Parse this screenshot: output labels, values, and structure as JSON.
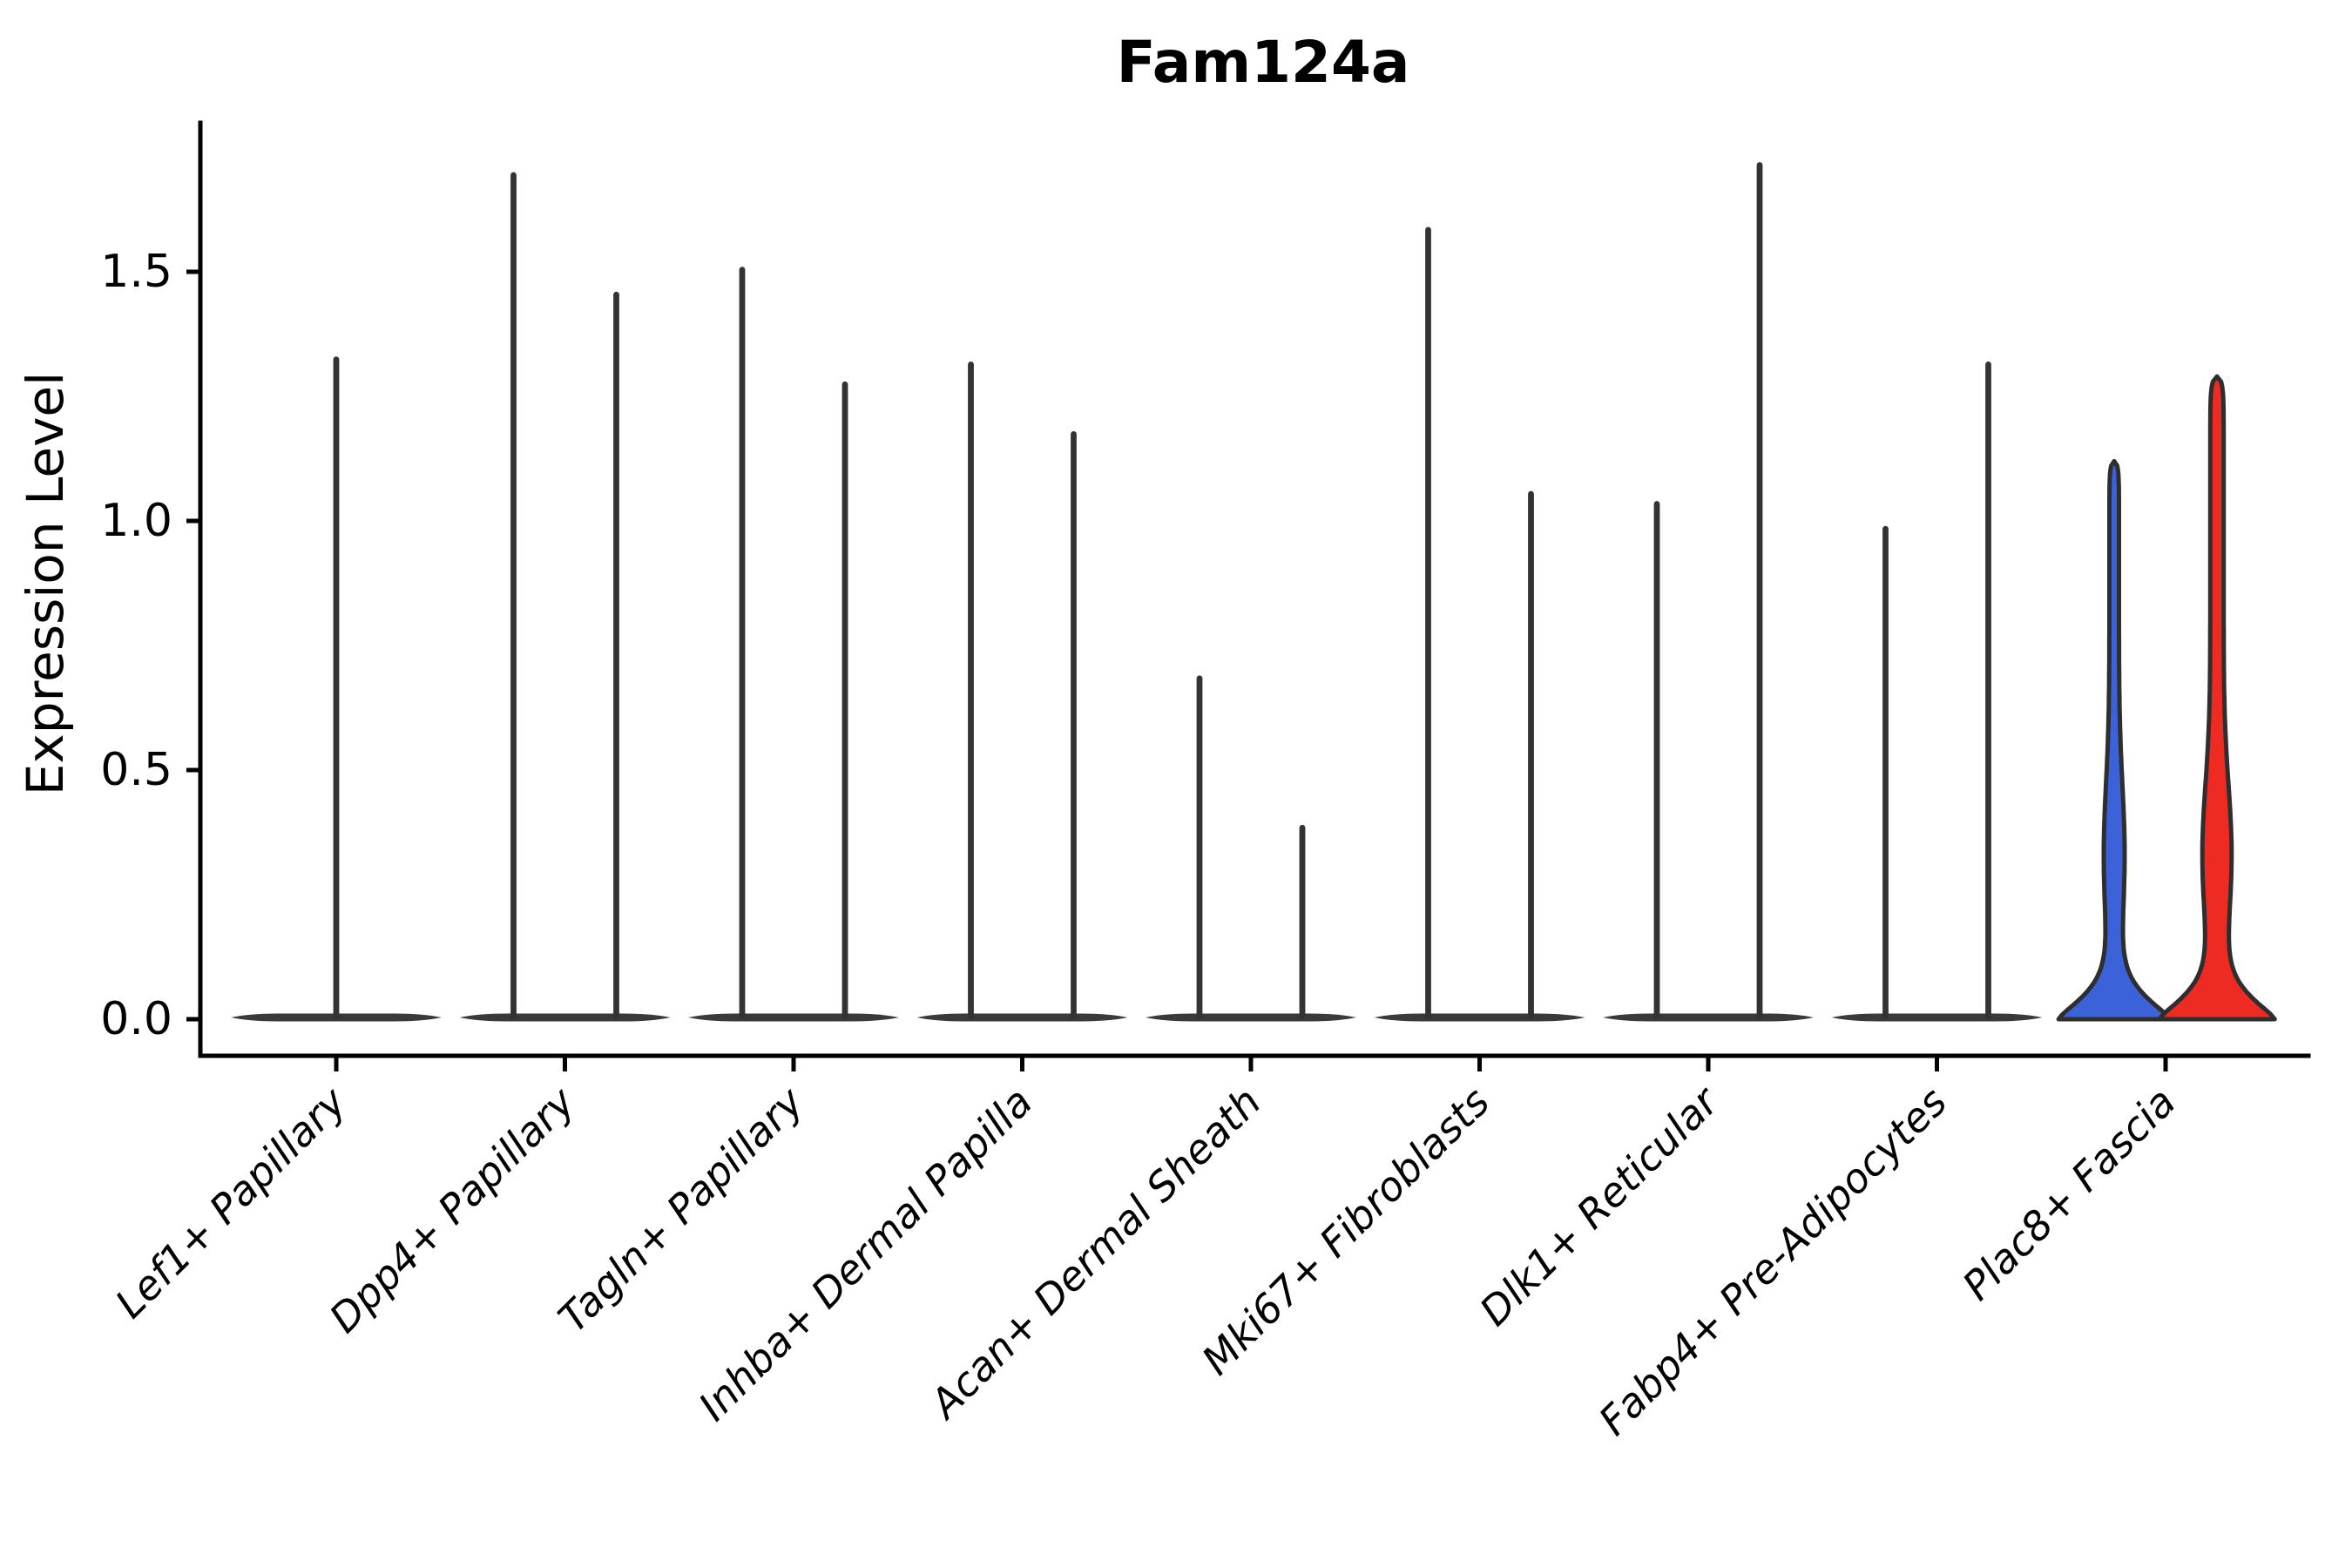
{
  "chart_data": {
    "type": "violin",
    "title": "Fam124a",
    "ylabel": "Expression Level",
    "xlabel": "",
    "grid": "off",
    "legend": "none",
    "ylim": [
      -0.07,
      1.8
    ],
    "yticks": [
      0.0,
      0.5,
      1.0,
      1.5
    ],
    "ytick_labels": [
      "0.0",
      "0.5",
      "1.0",
      "1.5"
    ],
    "categories": [
      "Lef1+ Papillary",
      "Dpp4+ Papillary",
      "Tagln+ Papillary",
      "Inhba+ Dermal Papilla",
      "Acan+ Dermal Sheath",
      "Mki67+ Fibroblasts",
      "Dlk1+ Reticular",
      "Fabp4+ Pre-Adipocytes",
      "Plac8+ Fascia"
    ],
    "groups": [
      {
        "category": "Lef1+ Papillary",
        "violins": [
          {
            "position": "center",
            "style": "spike",
            "max": 1.33
          }
        ]
      },
      {
        "category": "Dpp4+ Papillary",
        "violins": [
          {
            "position": "left",
            "style": "spike",
            "max": 1.7
          },
          {
            "position": "right",
            "style": "spike",
            "max": 1.46
          }
        ]
      },
      {
        "category": "Tagln+ Papillary",
        "violins": [
          {
            "position": "left",
            "style": "spike",
            "max": 1.51
          },
          {
            "position": "right",
            "style": "spike",
            "max": 1.28
          }
        ]
      },
      {
        "category": "Inhba+ Dermal Papilla",
        "violins": [
          {
            "position": "left",
            "style": "spike",
            "max": 1.32
          },
          {
            "position": "right",
            "style": "spike",
            "max": 1.18
          }
        ]
      },
      {
        "category": "Acan+ Dermal Sheath",
        "violins": [
          {
            "position": "left",
            "style": "spike",
            "max": 0.69
          },
          {
            "position": "right",
            "style": "spike",
            "max": 0.39
          }
        ]
      },
      {
        "category": "Mki67+ Fibroblasts",
        "violins": [
          {
            "position": "left",
            "style": "spike",
            "max": 1.59
          },
          {
            "position": "right",
            "style": "spike",
            "max": 1.06
          }
        ]
      },
      {
        "category": "Dlk1+ Reticular",
        "violins": [
          {
            "position": "left",
            "style": "spike",
            "max": 1.04
          },
          {
            "position": "right",
            "style": "spike",
            "max": 1.72
          }
        ]
      },
      {
        "category": "Fabp4+ Pre-Adipocytes",
        "violins": [
          {
            "position": "left",
            "style": "spike",
            "max": 0.99
          },
          {
            "position": "right",
            "style": "spike",
            "max": 1.32
          }
        ]
      },
      {
        "category": "Plac8+ Fascia",
        "violins": [
          {
            "position": "left",
            "style": "filled",
            "fill_key": "blue",
            "max": 1.12,
            "bulge": 1.0
          },
          {
            "position": "right",
            "style": "filled",
            "fill_key": "red",
            "max": 1.29,
            "bulge": 1.4
          }
        ]
      }
    ],
    "expression_zero_baseline": 0.0,
    "colors": {
      "axis": "#000000",
      "spike": "#333333",
      "baseline_violin": "#3a3a3a",
      "violin_outline": "#2e2e2e",
      "blue": "#3c62d9",
      "red": "#ee2b23"
    }
  }
}
